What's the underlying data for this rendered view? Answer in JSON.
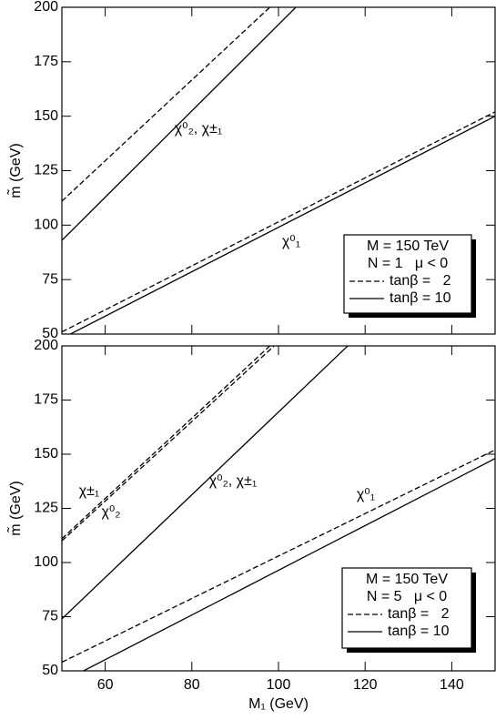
{
  "chart_data": [
    {
      "type": "line",
      "ylabel": "m̃ (GeV)",
      "xlim": [
        50,
        150
      ],
      "ylim": [
        50,
        200
      ],
      "xticks": [
        60,
        80,
        100,
        120,
        140
      ],
      "yticks": [
        50,
        75,
        100,
        125,
        150,
        175,
        200
      ],
      "legend": "lower right",
      "legend_title": [
        "M = 150 TeV",
        "N = 1   μ < 0"
      ],
      "series": [
        {
          "name": "tanβ =   2",
          "dash": "dashed",
          "color": "#000000",
          "x": [
            50,
            98,
            null,
            50,
            150
          ],
          "values": [
            111,
            200,
            null,
            51,
            152
          ]
        },
        {
          "name": "tanβ = 10",
          "dash": "solid",
          "color": "#000000",
          "x": [
            50,
            104,
            null,
            50,
            150
          ],
          "values": [
            93,
            200,
            null,
            48,
            150
          ]
        }
      ],
      "annotations": [
        "χ⁰₂, χ±₁",
        "χ⁰₁"
      ]
    },
    {
      "type": "line",
      "ylabel": "m̃ (GeV)",
      "xlabel": "M₁ (GeV)",
      "xlim": [
        50,
        150
      ],
      "ylim": [
        50,
        200
      ],
      "xticks": [
        60,
        80,
        100,
        120,
        140
      ],
      "yticks": [
        50,
        75,
        100,
        125,
        150,
        175,
        200
      ],
      "legend": "lower right",
      "legend_title": [
        "M = 150 TeV",
        "N = 5   μ < 0"
      ],
      "series": [
        {
          "name": "tanβ =   2",
          "dash": "dashed",
          "color": "#000000",
          "x": [
            50,
            98,
            null,
            50,
            99,
            null,
            50,
            150
          ],
          "values": [
            111,
            200,
            null,
            110,
            200,
            null,
            54,
            152
          ]
        },
        {
          "name": "tanβ = 10",
          "dash": "solid",
          "color": "#000000",
          "x": [
            50,
            116,
            null,
            55,
            150
          ],
          "values": [
            74,
            200,
            null,
            50,
            148
          ]
        }
      ],
      "annotations": [
        "χ±₁",
        "χ⁰₂",
        "χ⁰₂, χ±₁",
        "χ⁰₁"
      ]
    }
  ]
}
